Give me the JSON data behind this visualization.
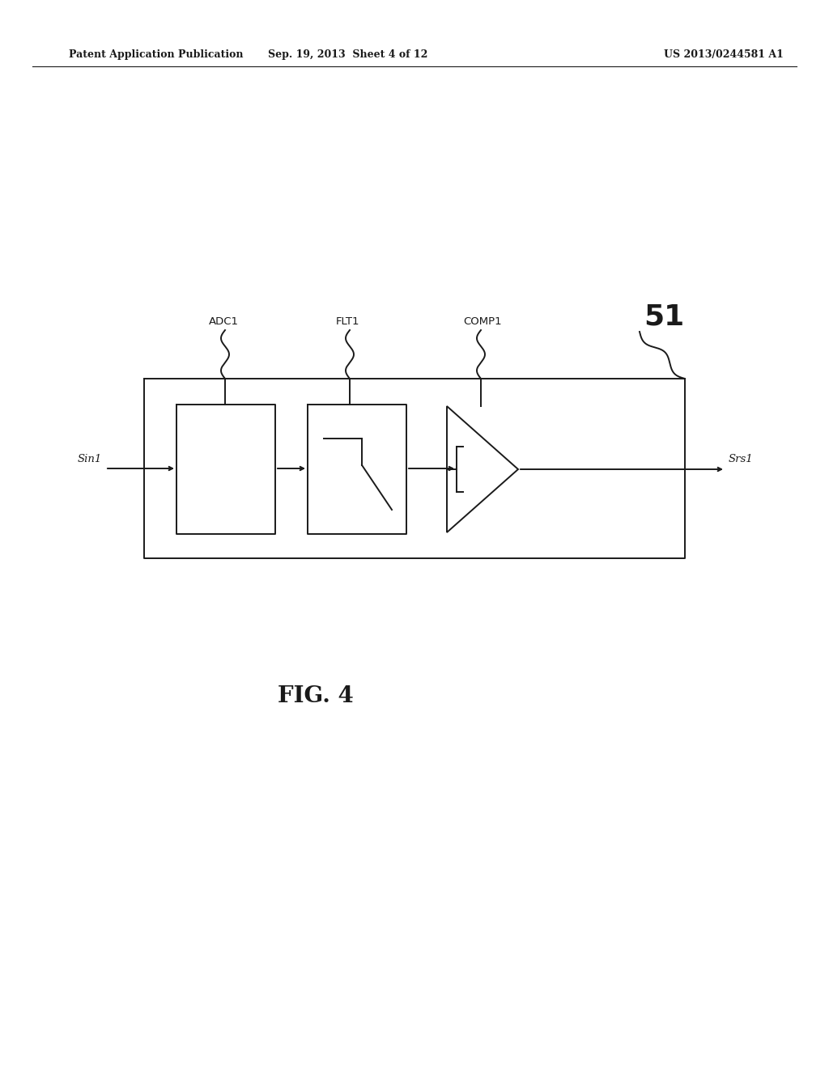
{
  "bg_color": "#ffffff",
  "line_color": "#1a1a1a",
  "header_left": "Patent Application Publication",
  "header_center": "Sep. 19, 2013  Sheet 4 of 12",
  "header_right": "US 2013/0244581 A1",
  "fig_label": "FIG. 4",
  "block_number": "51",
  "label_adc": "ADC1",
  "label_flt": "FLT1",
  "label_comp": "COMP1",
  "label_sin": "Sin1",
  "label_srs": "Srs1",
  "header_fontsize": 9,
  "label_fontsize": 9.5,
  "signal_fontsize": 9.5,
  "number_fontsize": 26,
  "fig_label_fontsize": 20
}
